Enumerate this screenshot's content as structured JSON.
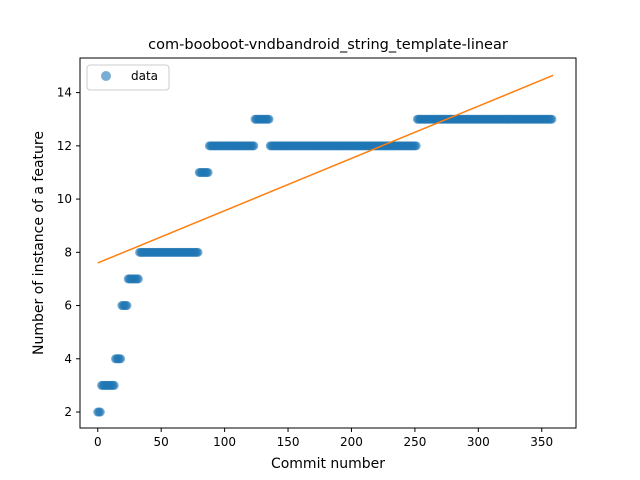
{
  "chart_data": {
    "type": "scatter",
    "title": "com-booboot-vndbandroid_string_template-linear",
    "xlabel": "Commit number",
    "ylabel": "Number of instance of a feature",
    "xlim": [
      -14,
      377
    ],
    "ylim": [
      1.4,
      15.3
    ],
    "xticks": [
      0,
      50,
      100,
      150,
      200,
      250,
      300,
      350
    ],
    "yticks": [
      2,
      4,
      6,
      8,
      10,
      12,
      14
    ],
    "legend": {
      "placement": "top-left",
      "entries": [
        "data"
      ]
    },
    "colors": {
      "data": "#1f77b4",
      "fit": "#ff7f0e"
    },
    "series": [
      {
        "name": "data",
        "kind": "scatter",
        "segments": [
          {
            "x_start": 0,
            "x_end": 3,
            "y": 2
          },
          {
            "x_start": 3,
            "x_end": 14,
            "y": 3
          },
          {
            "x_start": 14,
            "x_end": 19,
            "y": 4
          },
          {
            "x_start": 19,
            "x_end": 24,
            "y": 6
          },
          {
            "x_start": 24,
            "x_end": 33,
            "y": 7
          },
          {
            "x_start": 33,
            "x_end": 80,
            "y": 8
          },
          {
            "x_start": 80,
            "x_end": 88,
            "y": 11
          },
          {
            "x_start": 88,
            "x_end": 124,
            "y": 12
          },
          {
            "x_start": 124,
            "x_end": 136,
            "y": 13
          },
          {
            "x_start": 136,
            "x_end": 252,
            "y": 12
          },
          {
            "x_start": 252,
            "x_end": 359,
            "y": 13
          }
        ]
      },
      {
        "kind": "line",
        "x": [
          0,
          359
        ],
        "y": [
          7.6,
          14.65
        ]
      }
    ]
  }
}
